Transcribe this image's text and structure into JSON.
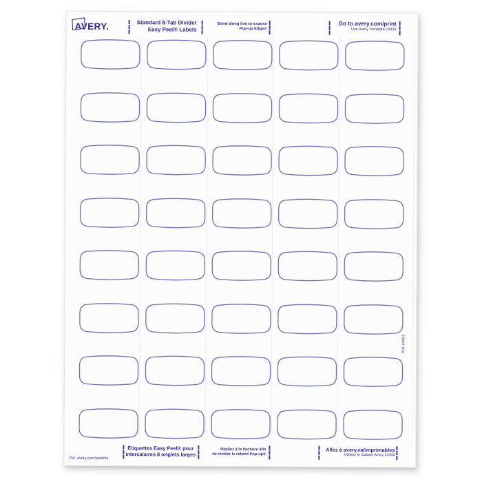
{
  "colors": {
    "ink": "#2f2c88",
    "label_outline": "#7170ac",
    "sheet_background": "#fcfcfd",
    "page_background": "#fefefe"
  },
  "sheet": {
    "header": {
      "brand": "AVERY.",
      "product_line1": "Standard 8-Tab Divider",
      "product_line2": "Easy Peel® Labels",
      "bend_line1": "Bend along line to expose",
      "bend_line2": "Pop-up Edge®",
      "print_line1": "Go to avery.com/print",
      "print_line2": "Use Avery Template 14433"
    },
    "footer": {
      "patent": "Pat: avery.com/patents",
      "fr_product_line1": "Étiquettes Easy Peel® pour",
      "fr_product_line2": "intercalaires 8 onglets larges",
      "fr_bend_line1": "Repliez à la hachure afin",
      "fr_bend_line2": "de révéler le rebord Pop-up®",
      "fr_print_line1": "Allez à avery.ca/imprimables",
      "fr_print_line2": "Utilisez le Gabarit Avery 14433"
    },
    "part_number": "P/N 64081",
    "grid": {
      "rows": 8,
      "columns": 5
    }
  }
}
